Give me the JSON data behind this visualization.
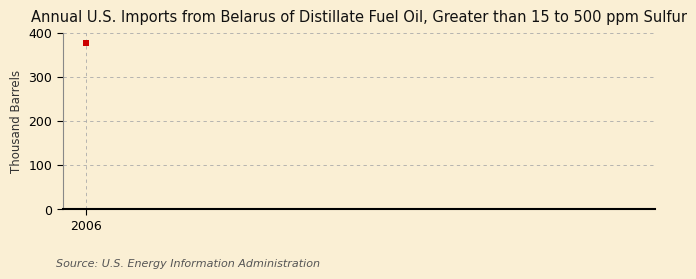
{
  "title": "Annual U.S. Imports from Belarus of Distillate Fuel Oil, Greater than 15 to 500 ppm Sulfur",
  "ylabel": "Thousand Barrels",
  "source_text": "Source: U.S. Energy Information Administration",
  "data_x": [
    2006
  ],
  "data_y": [
    378
  ],
  "marker_color": "#cc0000",
  "marker_size": 4,
  "xlim": [
    2005.3,
    2023
  ],
  "ylim": [
    0,
    400
  ],
  "yticks": [
    0,
    100,
    200,
    300,
    400
  ],
  "xticks": [
    2006
  ],
  "background_color": "#faefd4",
  "grid_color": "#aaaaaa",
  "spine_color": "#888888",
  "title_fontsize": 10.5,
  "axis_label_fontsize": 8.5,
  "tick_fontsize": 9,
  "source_fontsize": 8
}
